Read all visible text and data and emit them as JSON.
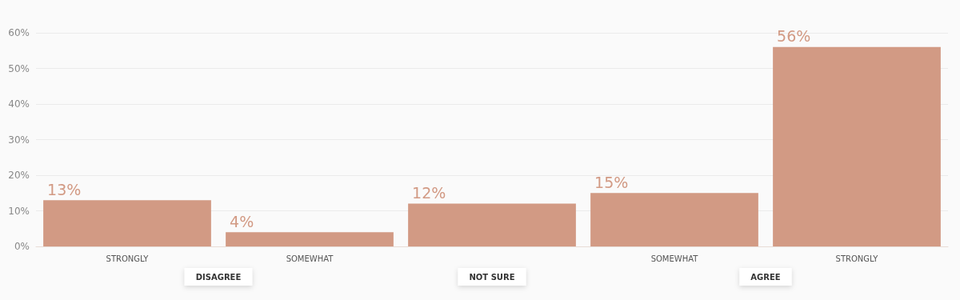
{
  "chart_data": {
    "type": "bar",
    "categories": [
      "STRONGLY",
      "SOMEWHAT",
      null,
      "SOMEWHAT",
      "STRONGLY"
    ],
    "values": [
      13,
      4,
      12,
      15,
      56
    ],
    "color": "#d29a84",
    "value_labels": [
      "13%",
      "4%",
      "12%",
      "15%",
      "56%"
    ],
    "ylim": [
      0,
      60
    ],
    "yticks": [
      {
        "value": 0,
        "label": "0%"
      },
      {
        "value": 10,
        "label": "10%"
      },
      {
        "value": 20,
        "label": "20%"
      },
      {
        "value": 30,
        "label": "30%"
      },
      {
        "value": 40,
        "label": "40%"
      },
      {
        "value": 50,
        "label": "50%"
      },
      {
        "value": 60,
        "label": "60%"
      }
    ],
    "grid": "y",
    "annotations": [
      "DISAGREE",
      "NOT SURE",
      "AGREE"
    ]
  }
}
